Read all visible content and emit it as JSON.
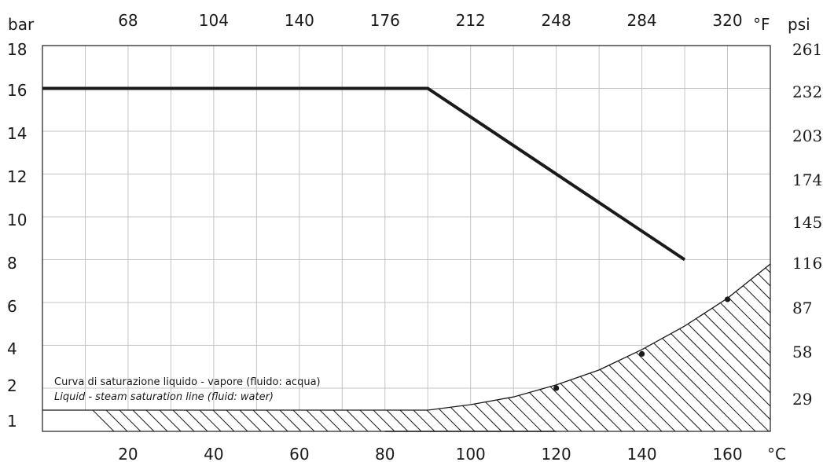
{
  "chart_data": {
    "type": "line",
    "title": "",
    "x_unit_bottom": "°C",
    "x_unit_top": "°F",
    "y_unit_left": "bar",
    "y_unit_right": "psi",
    "x_ticks_bottom": [
      "20",
      "40",
      "60",
      "80",
      "100",
      "120",
      "140",
      "160"
    ],
    "x_ticks_top": [
      "68",
      "104",
      "140",
      "176",
      "212",
      "248",
      "284",
      "320"
    ],
    "y_ticks_left": [
      "1",
      "2",
      "4",
      "6",
      "8",
      "10",
      "12",
      "14",
      "16",
      "18"
    ],
    "y_ticks_right": [
      "29",
      "58",
      "87",
      "116",
      "145",
      "174",
      "203",
      "232",
      "261"
    ],
    "xlim": [
      0,
      170
    ],
    "ylim": [
      1,
      18
    ],
    "grid": true,
    "series": [
      {
        "name": "",
        "color": "#1a1a1a",
        "x": [
          0,
          90,
          150
        ],
        "y": [
          16,
          16,
          8
        ]
      }
    ],
    "saturation_curve": {
      "x": [
        0,
        90,
        100,
        110,
        120,
        130,
        140,
        150,
        160,
        170
      ],
      "y": [
        1.0,
        1.0,
        1.25,
        1.6,
        2.15,
        2.85,
        3.8,
        4.9,
        6.2,
        7.8
      ],
      "marked_points": [
        {
          "x": 120,
          "y": 2.0
        },
        {
          "x": 140,
          "y": 3.6
        },
        {
          "x": 160,
          "y": 6.15
        }
      ],
      "fill": "hatched"
    },
    "annotations": [
      "Curva di saturazione liquido - vapore (fluido: acqua)",
      "Liquid - steam saturation line (fluid: water)"
    ]
  }
}
